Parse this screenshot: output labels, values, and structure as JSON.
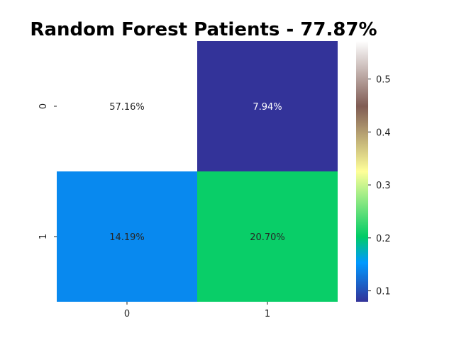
{
  "chart_data": {
    "type": "heatmap",
    "title": "Random Forest Patients - 77.87%",
    "xlabel": "",
    "ylabel": "",
    "x_categories": [
      "0",
      "1"
    ],
    "y_categories": [
      "0",
      "1"
    ],
    "values": [
      [
        57.16,
        7.94
      ],
      [
        14.19,
        20.7
      ]
    ],
    "cell_labels": [
      [
        "57.16%",
        "7.94%"
      ],
      [
        "14.19%",
        "20.70%"
      ]
    ],
    "colorbar": {
      "colormap": "terrain",
      "range": [
        0.0794,
        0.5716
      ],
      "ticks": [
        0.1,
        0.2,
        0.3,
        0.4,
        0.5
      ],
      "tick_labels": [
        "0.1",
        "0.2",
        "0.3",
        "0.4",
        "0.5"
      ]
    },
    "grid": false
  }
}
